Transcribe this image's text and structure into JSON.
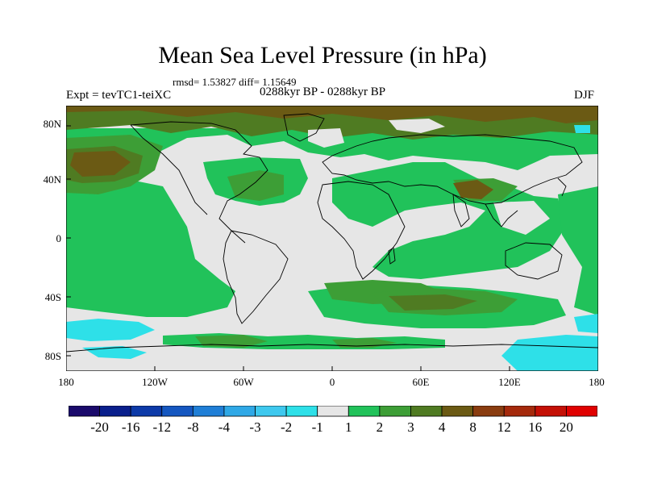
{
  "header": {
    "title": "Mean Sea Level Pressure (in hPa)",
    "stats": "rmsd= 1.53827 diff= 1.15649",
    "expt": "Expt = tevTC1-teiXC",
    "period": "0288kyr BP - 0288kyr BP",
    "season": "DJF"
  },
  "axes": {
    "lat_ticks": [
      "80N",
      "40N",
      "0",
      "40S",
      "80S"
    ],
    "lon_ticks": [
      "180",
      "120W",
      "60W",
      "0",
      "60E",
      "120E",
      "180"
    ]
  },
  "colorbar": {
    "labels": [
      "-20",
      "-16",
      "-12",
      "-8",
      "-4",
      "-3",
      "-2",
      "-1",
      "1",
      "2",
      "3",
      "4",
      "8",
      "12",
      "16",
      "20"
    ],
    "colors": [
      "#1a0a6b",
      "#0a1f8c",
      "#0d3aa8",
      "#1557c0",
      "#1f7ed6",
      "#2fa8e6",
      "#3ec8ee",
      "#2ee0e8",
      "#e6e6e6",
      "#21c25a",
      "#3d9e36",
      "#4f7b22",
      "#6b5a14",
      "#8a3d10",
      "#a52a0c",
      "#c41006",
      "#e00000"
    ]
  },
  "map": {
    "legend_colors": {
      "near_zero": "#e6e6e6",
      "positive_1_2": "#21c25a",
      "positive_2_3": "#3d9e36",
      "positive_3_4": "#4f7b22",
      "positive_4_8": "#6b5a14",
      "negative_2_1": "#2ee0e8",
      "coastline": "#000000"
    }
  }
}
